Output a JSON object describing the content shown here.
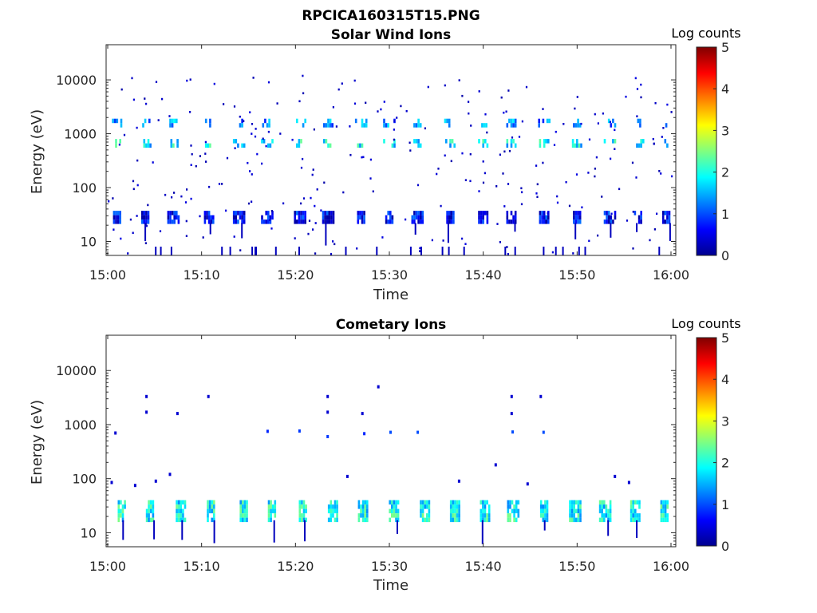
{
  "figure": {
    "filename_title": "RPCICA160315T15.PNG"
  },
  "chart_data": [
    {
      "type": "heatmap",
      "title": "Solar Wind Ions",
      "xlabel": "Time",
      "ylabel": "Energy (eV)",
      "y_scale": "log",
      "ylim": [
        5.5,
        45000
      ],
      "x_range_min": [
        0,
        60
      ],
      "x_ticks": [
        {
          "v": 0,
          "label": "15:00"
        },
        {
          "v": 10,
          "label": "15:10"
        },
        {
          "v": 20,
          "label": "15:20"
        },
        {
          "v": 30,
          "label": "15:30"
        },
        {
          "v": 40,
          "label": "15:40"
        },
        {
          "v": 50,
          "label": "15:50"
        },
        {
          "v": 60,
          "label": "16:00"
        }
      ],
      "y_ticks": [
        {
          "v": 10,
          "label": "10"
        },
        {
          "v": 100,
          "label": "100"
        },
        {
          "v": 1000,
          "label": "1000"
        },
        {
          "v": 10000,
          "label": "10000"
        }
      ],
      "colorbar": {
        "label": "Log counts",
        "range": [
          0,
          5
        ],
        "ticks": [
          "0",
          "1",
          "2",
          "3",
          "4",
          "5"
        ],
        "colormap": "jet"
      },
      "grid": false,
      "scan_times": [
        1,
        4,
        7,
        10.8,
        14,
        17,
        20.5,
        23.5,
        27,
        30,
        33,
        36.5,
        40,
        43,
        46.5,
        50,
        53.5,
        56.5,
        59.5
      ],
      "bands": [
        {
          "e_low": 22,
          "e_high": 37,
          "level": 0.6
        },
        {
          "e_low": 600,
          "e_high": 800,
          "level": 1.8
        },
        {
          "e_low": 1400,
          "e_high": 1900,
          "level": 1.3
        }
      ],
      "scatter_energy_range": [
        6,
        13000
      ],
      "scatter_level": 0.2
    },
    {
      "type": "heatmap",
      "title": "Cometary Ions",
      "xlabel": "Time",
      "ylabel": "Energy (eV)",
      "y_scale": "log",
      "ylim": [
        5.5,
        45000
      ],
      "x_range_min": [
        0,
        60
      ],
      "x_ticks": [
        {
          "v": 0,
          "label": "15:00"
        },
        {
          "v": 10,
          "label": "15:10"
        },
        {
          "v": 20,
          "label": "15:20"
        },
        {
          "v": 30,
          "label": "15:30"
        },
        {
          "v": 40,
          "label": "15:40"
        },
        {
          "v": 50,
          "label": "15:50"
        },
        {
          "v": 60,
          "label": "16:00"
        }
      ],
      "y_ticks": [
        {
          "v": 10,
          "label": "10"
        },
        {
          "v": 100,
          "label": "100"
        },
        {
          "v": 1000,
          "label": "1000"
        },
        {
          "v": 10000,
          "label": "10000"
        }
      ],
      "colorbar": {
        "label": "Log counts",
        "range": [
          0,
          5
        ],
        "ticks": [
          "0",
          "1",
          "2",
          "3",
          "4",
          "5"
        ],
        "colormap": "jet"
      },
      "grid": false,
      "scan_times": [
        1.5,
        4.5,
        7.8,
        11,
        14.5,
        17.5,
        20.8,
        24,
        27.2,
        30.5,
        33.8,
        37,
        40.2,
        43.2,
        46.5,
        49.8,
        53,
        56.2,
        59.3
      ],
      "bands": [
        {
          "e_low": 17,
          "e_high": 40,
          "level": 1.9
        }
      ],
      "sparse_points": [
        {
          "t": 0.7,
          "e": 700,
          "level": 0.4
        },
        {
          "t": 4.0,
          "e": 3300,
          "level": 0.4
        },
        {
          "t": 4.0,
          "e": 1700,
          "level": 0.4
        },
        {
          "t": 7.3,
          "e": 1600,
          "level": 0.4
        },
        {
          "t": 10.6,
          "e": 3300,
          "level": 0.4
        },
        {
          "t": 16.9,
          "e": 750,
          "level": 0.8
        },
        {
          "t": 20.3,
          "e": 760,
          "level": 0.9
        },
        {
          "t": 23.3,
          "e": 3300,
          "level": 0.4
        },
        {
          "t": 23.3,
          "e": 1700,
          "level": 0.4
        },
        {
          "t": 23.3,
          "e": 600,
          "level": 0.9
        },
        {
          "t": 27.0,
          "e": 1600,
          "level": 0.4
        },
        {
          "t": 27.2,
          "e": 680,
          "level": 0.8
        },
        {
          "t": 28.7,
          "e": 5000,
          "level": 0.4
        },
        {
          "t": 30.0,
          "e": 720,
          "level": 1.0
        },
        {
          "t": 32.9,
          "e": 720,
          "level": 1.0
        },
        {
          "t": 41.2,
          "e": 180,
          "level": 0.4
        },
        {
          "t": 42.9,
          "e": 3300,
          "level": 0.4
        },
        {
          "t": 42.9,
          "e": 1600,
          "level": 0.4
        },
        {
          "t": 43.0,
          "e": 730,
          "level": 1.0
        },
        {
          "t": 46.0,
          "e": 3300,
          "level": 0.4
        },
        {
          "t": 46.3,
          "e": 720,
          "level": 1.0
        },
        {
          "t": 6.5,
          "e": 120,
          "level": 0.4
        },
        {
          "t": 5.0,
          "e": 90,
          "level": 0.4
        },
        {
          "t": 2.8,
          "e": 75,
          "level": 0.4
        },
        {
          "t": 0.3,
          "e": 85,
          "level": 0.4
        },
        {
          "t": 37.3,
          "e": 90,
          "level": 0.4
        },
        {
          "t": 44.6,
          "e": 80,
          "level": 0.4
        },
        {
          "t": 53.9,
          "e": 110,
          "level": 0.4
        },
        {
          "t": 55.4,
          "e": 85,
          "level": 0.4
        },
        {
          "t": 25.4,
          "e": 110,
          "level": 0.4
        }
      ]
    }
  ]
}
